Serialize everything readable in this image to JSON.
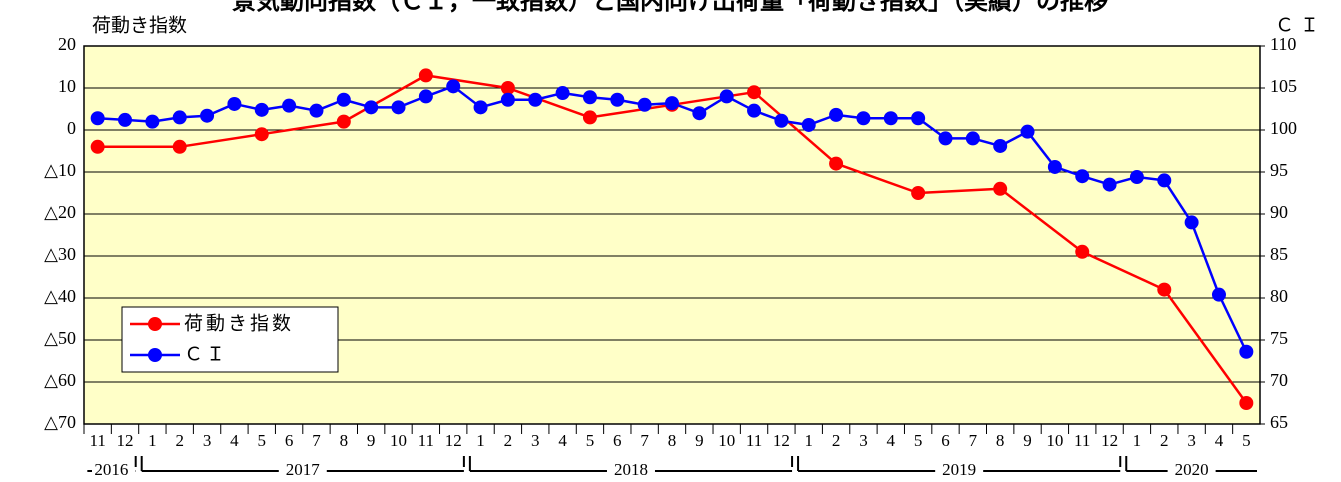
{
  "chart_data": {
    "type": "line",
    "title": "景気動向指数（ＣＩ，一致指数）と国内向け出荷量「荷動き指数」（実績）の推移",
    "y_label": "荷動き指数",
    "y2_label": "ＣＩ",
    "categories": [
      "11",
      "12",
      "1",
      "2",
      "3",
      "4",
      "5",
      "6",
      "7",
      "8",
      "9",
      "10",
      "11",
      "12",
      "1",
      "2",
      "3",
      "4",
      "5",
      "6",
      "7",
      "8",
      "9",
      "10",
      "11",
      "12",
      "1",
      "2",
      "3",
      "4",
      "5",
      "6",
      "7",
      "8",
      "9",
      "10",
      "11",
      "12",
      "1",
      "2",
      "3",
      "4",
      "5"
    ],
    "years": [
      "2016",
      "2017",
      "2018",
      "2019",
      "2020"
    ],
    "series": [
      {
        "name": "荷動き指数",
        "color": "#ff0000",
        "axis": "y",
        "values": [
          -4,
          null,
          null,
          -4,
          null,
          null,
          -1,
          null,
          null,
          2,
          null,
          null,
          13,
          null,
          null,
          10,
          null,
          null,
          3,
          null,
          null,
          6,
          null,
          null,
          9,
          null,
          null,
          -8,
          null,
          null,
          -15,
          null,
          null,
          -14,
          null,
          null,
          -29,
          null,
          null,
          -38,
          null,
          null,
          -65
        ]
      },
      {
        "name": "ＣＩ",
        "color": "#0000ff",
        "axis": "y2",
        "values": [
          101.4,
          101.2,
          101.0,
          101.5,
          101.7,
          103.1,
          102.4,
          102.9,
          102.3,
          103.6,
          102.7,
          102.7,
          104.0,
          105.2,
          102.7,
          103.6,
          103.6,
          104.4,
          103.9,
          103.6,
          103.0,
          103.2,
          102.0,
          104.0,
          102.3,
          101.1,
          100.6,
          101.8,
          101.4,
          101.4,
          101.4,
          99.0,
          99.0,
          98.1,
          99.8,
          95.6,
          94.5,
          93.5,
          94.4,
          94.0,
          89.0,
          80.4,
          73.6
        ]
      }
    ],
    "ylim": [
      -70,
      20
    ],
    "yticks": [
      {
        "value": -70,
        "label": "△70"
      },
      {
        "value": -60,
        "label": "△60"
      },
      {
        "value": -50,
        "label": "△50"
      },
      {
        "value": -40,
        "label": "△40"
      },
      {
        "value": -30,
        "label": "△30"
      },
      {
        "value": -20,
        "label": "△20"
      },
      {
        "value": -10,
        "label": "△10"
      },
      0,
      10,
      20
    ],
    "y2lim": [
      65,
      110
    ],
    "y2ticks": [
      65,
      70,
      75,
      80,
      85,
      90,
      95,
      100,
      105,
      110
    ],
    "grid": true,
    "legend": "lower left"
  }
}
